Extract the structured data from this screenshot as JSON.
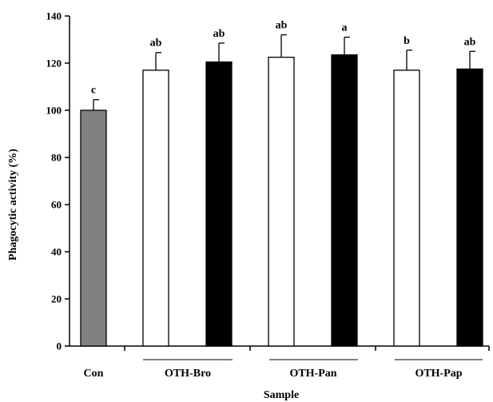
{
  "chart_data": {
    "type": "bar",
    "xlabel": "Sample",
    "ylabel": "Phagocytic activity (%)",
    "ylim": [
      0,
      140
    ],
    "yticks": [
      0,
      20,
      40,
      60,
      80,
      100,
      120,
      140
    ],
    "grid": false,
    "legend": "none",
    "groups": [
      {
        "label": "Con",
        "bars": [
          0
        ]
      },
      {
        "label": "OTH-Bro",
        "bars": [
          1,
          2
        ]
      },
      {
        "label": "OTH-Pan",
        "bars": [
          3,
          4
        ]
      },
      {
        "label": "OTH-Pap",
        "bars": [
          5,
          6
        ]
      }
    ],
    "bars": [
      {
        "value": 100,
        "error": 4.5,
        "sig": "c",
        "color": "#808080"
      },
      {
        "value": 117,
        "error": 7.5,
        "sig": "ab",
        "color": "#ffffff"
      },
      {
        "value": 120.5,
        "error": 8,
        "sig": "ab",
        "color": "#000000"
      },
      {
        "value": 122.5,
        "error": 9.5,
        "sig": "ab",
        "color": "#ffffff"
      },
      {
        "value": 123.5,
        "error": 7.5,
        "sig": "a",
        "color": "#000000"
      },
      {
        "value": 117,
        "error": 8.5,
        "sig": "b",
        "color": "#ffffff"
      },
      {
        "value": 117.5,
        "error": 7.5,
        "sig": "ab",
        "color": "#000000"
      }
    ]
  }
}
